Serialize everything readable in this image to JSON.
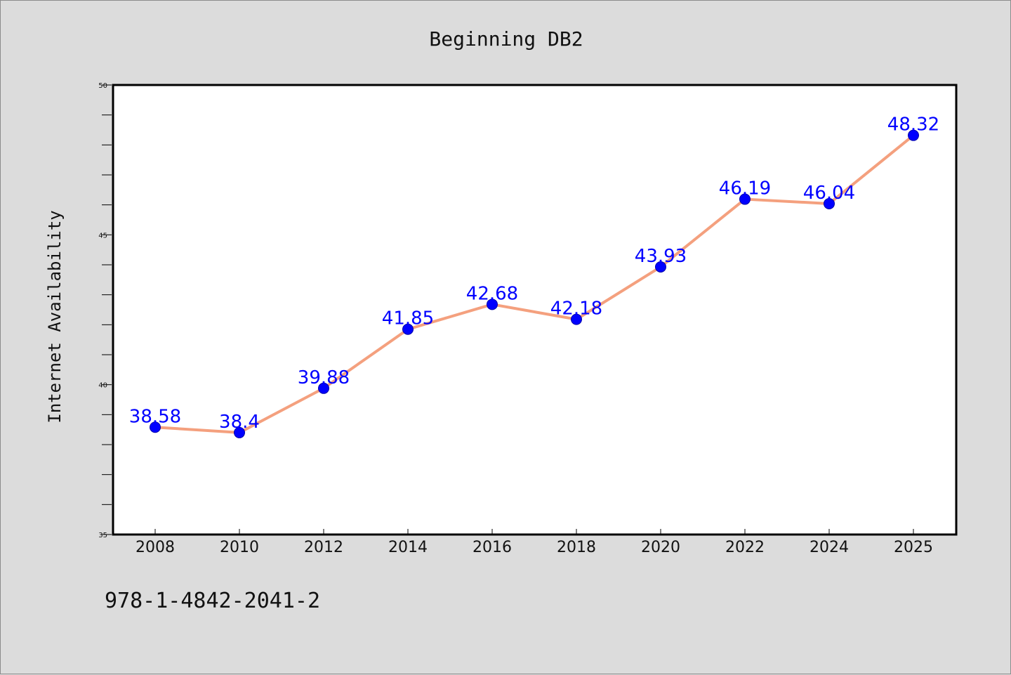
{
  "chart_data": {
    "type": "line",
    "title": "Beginning DB2",
    "xlabel": "",
    "ylabel": "Internet Availability",
    "categories": [
      "2008",
      "2010",
      "2012",
      "2014",
      "2016",
      "2018",
      "2020",
      "2022",
      "2024",
      "2025"
    ],
    "values": [
      38.58,
      38.4,
      39.88,
      41.85,
      42.68,
      42.18,
      43.93,
      46.19,
      46.04,
      48.32
    ],
    "data_labels": [
      "38.58",
      "38.4",
      "39.88",
      "41.85",
      "42.68",
      "42.18",
      "43.93",
      "46.19",
      "46.04",
      "48.32"
    ],
    "ylim": [
      35,
      50
    ],
    "yticks": [
      "35",
      "40",
      "45",
      "50"
    ],
    "grid": false,
    "line_color": "#f4a07e",
    "marker_color": "#0000ff",
    "label_color": "#0000ff",
    "background_color": "#dcdcdc",
    "plot_background": "#ffffff"
  },
  "footer": {
    "isbn": "978-1-4842-2041-2"
  }
}
